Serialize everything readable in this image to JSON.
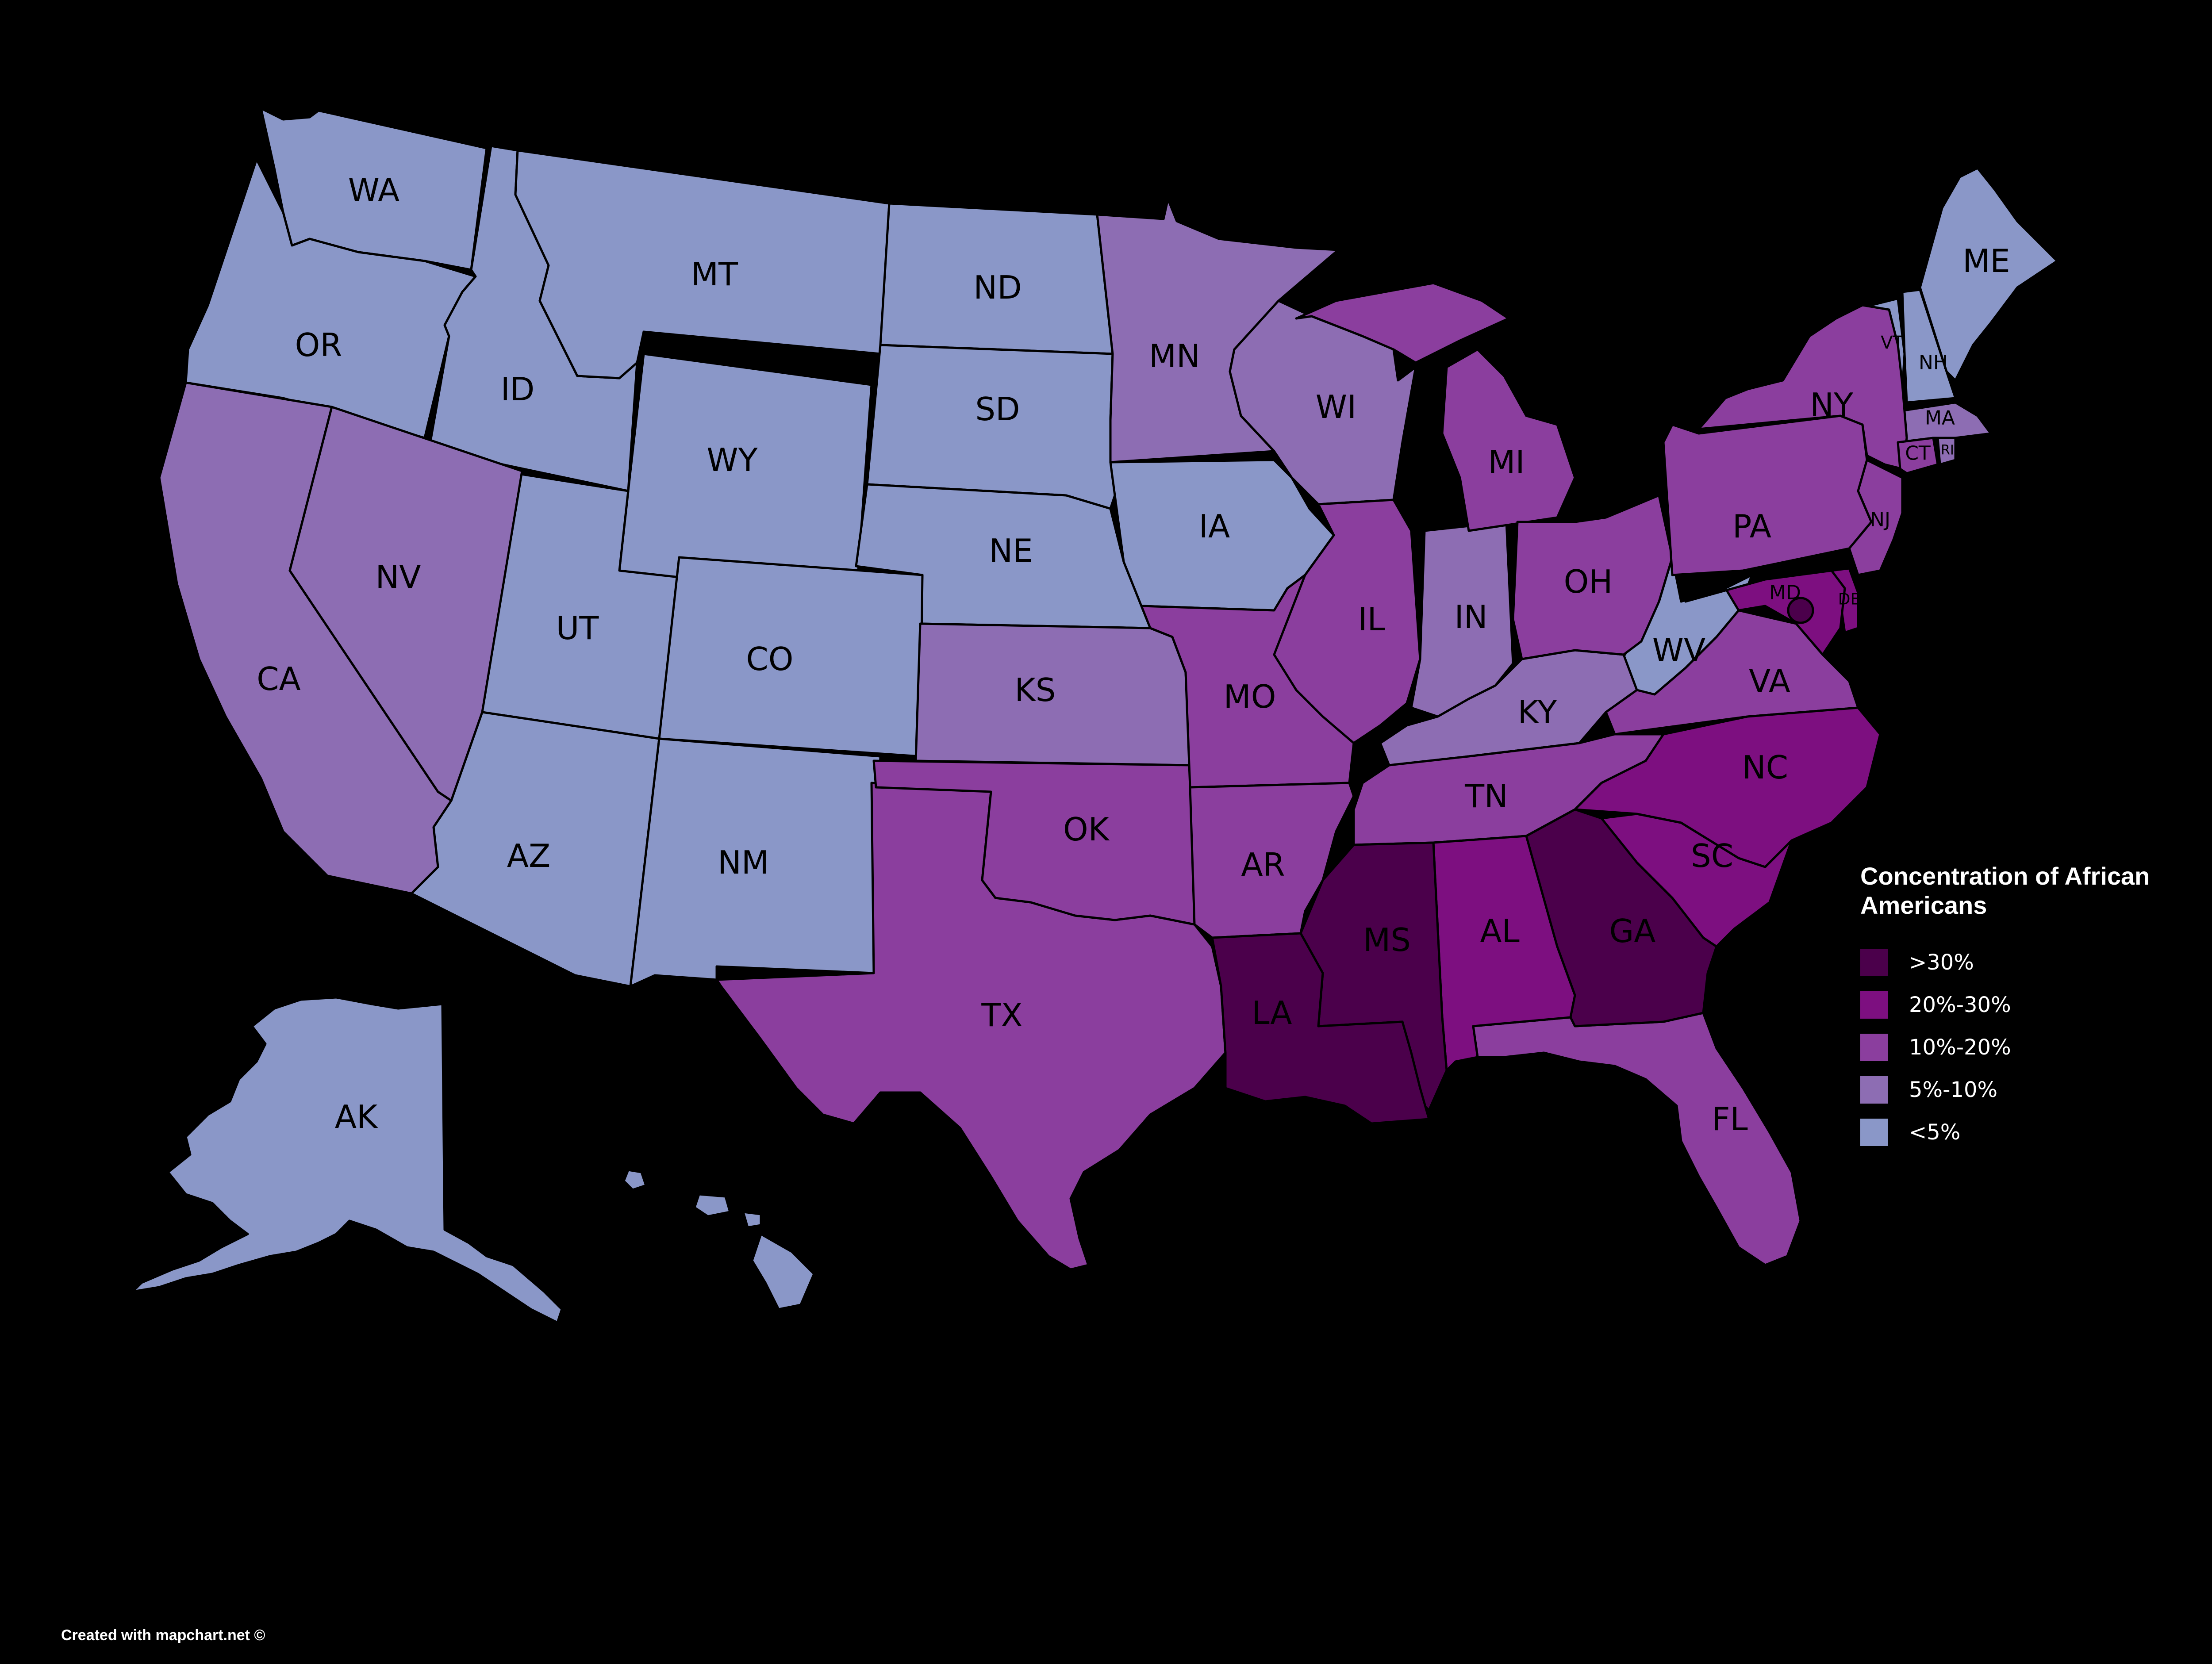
{
  "legend": {
    "title": "Concentration of African Americans",
    "items": [
      {
        "label": ">30%",
        "color": "#4b004b"
      },
      {
        "label": "20%-30%",
        "color": "#7d0f80"
      },
      {
        "label": "10%-20%",
        "color": "#8b3e9e"
      },
      {
        "label": "5%-10%",
        "color": "#8d6db3"
      },
      {
        "label": "<5%",
        "color": "#8a97c8"
      }
    ]
  },
  "credit": "Created with mapchart.net ©",
  "states": [
    {
      "abbr": "WA",
      "category": "<5%"
    },
    {
      "abbr": "OR",
      "category": "<5%"
    },
    {
      "abbr": "ID",
      "category": "<5%"
    },
    {
      "abbr": "MT",
      "category": "<5%"
    },
    {
      "abbr": "WY",
      "category": "<5%"
    },
    {
      "abbr": "ND",
      "category": "<5%"
    },
    {
      "abbr": "SD",
      "category": "<5%"
    },
    {
      "abbr": "NE",
      "category": "<5%"
    },
    {
      "abbr": "UT",
      "category": "<5%"
    },
    {
      "abbr": "CO",
      "category": "<5%"
    },
    {
      "abbr": "AZ",
      "category": "<5%"
    },
    {
      "abbr": "NM",
      "category": "<5%"
    },
    {
      "abbr": "IA",
      "category": "<5%"
    },
    {
      "abbr": "WV",
      "category": "<5%"
    },
    {
      "abbr": "ME",
      "category": "<5%"
    },
    {
      "abbr": "NH",
      "category": "<5%"
    },
    {
      "abbr": "VT",
      "category": "<5%"
    },
    {
      "abbr": "AK",
      "category": "<5%"
    },
    {
      "abbr": "HI",
      "category": "<5%"
    },
    {
      "abbr": "CA",
      "category": "5%-10%"
    },
    {
      "abbr": "NV",
      "category": "5%-10%"
    },
    {
      "abbr": "KS",
      "category": "5%-10%"
    },
    {
      "abbr": "MN",
      "category": "5%-10%"
    },
    {
      "abbr": "WI",
      "category": "5%-10%"
    },
    {
      "abbr": "IN",
      "category": "5%-10%"
    },
    {
      "abbr": "KY",
      "category": "5%-10%"
    },
    {
      "abbr": "MA",
      "category": "5%-10%"
    },
    {
      "abbr": "RI",
      "category": "5%-10%"
    },
    {
      "abbr": "TX",
      "category": "10%-20%"
    },
    {
      "abbr": "OK",
      "category": "10%-20%"
    },
    {
      "abbr": "MO",
      "category": "10%-20%"
    },
    {
      "abbr": "AR",
      "category": "10%-20%"
    },
    {
      "abbr": "IL",
      "category": "10%-20%"
    },
    {
      "abbr": "MI",
      "category": "10%-20%"
    },
    {
      "abbr": "OH",
      "category": "10%-20%"
    },
    {
      "abbr": "TN",
      "category": "10%-20%"
    },
    {
      "abbr": "FL",
      "category": "10%-20%"
    },
    {
      "abbr": "VA",
      "category": "10%-20%"
    },
    {
      "abbr": "PA",
      "category": "10%-20%"
    },
    {
      "abbr": "NY",
      "category": "10%-20%"
    },
    {
      "abbr": "NJ",
      "category": "10%-20%"
    },
    {
      "abbr": "CT",
      "category": "10%-20%"
    },
    {
      "abbr": "AL",
      "category": "20%-30%"
    },
    {
      "abbr": "SC",
      "category": "20%-30%"
    },
    {
      "abbr": "NC",
      "category": "20%-30%"
    },
    {
      "abbr": "DE",
      "category": "20%-30%"
    },
    {
      "abbr": "MD",
      "category": "20%-30%"
    },
    {
      "abbr": "MS",
      "category": ">30%"
    },
    {
      "abbr": "LA",
      "category": ">30%"
    },
    {
      "abbr": "GA",
      "category": ">30%"
    },
    {
      "abbr": "DC",
      "category": ">30%"
    }
  ]
}
